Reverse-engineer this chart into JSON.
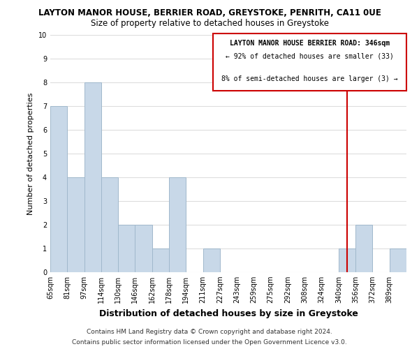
{
  "title": "LAYTON MANOR HOUSE, BERRIER ROAD, GREYSTOKE, PENRITH, CA11 0UE",
  "subtitle": "Size of property relative to detached houses in Greystoke",
  "xlabel": "Distribution of detached houses by size in Greystoke",
  "ylabel": "Number of detached properties",
  "bin_labels": [
    "65sqm",
    "81sqm",
    "97sqm",
    "114sqm",
    "130sqm",
    "146sqm",
    "162sqm",
    "178sqm",
    "194sqm",
    "211sqm",
    "227sqm",
    "243sqm",
    "259sqm",
    "275sqm",
    "292sqm",
    "308sqm",
    "324sqm",
    "340sqm",
    "356sqm",
    "372sqm",
    "389sqm"
  ],
  "bar_heights": [
    7,
    4,
    8,
    4,
    2,
    2,
    1,
    4,
    0,
    1,
    0,
    0,
    0,
    0,
    0,
    0,
    0,
    1,
    2,
    0,
    1
  ],
  "bar_color": "#c8d8e8",
  "bar_edge_color": "#a0b8cc",
  "vline_x": 17.5,
  "vline_color": "#cc0000",
  "ylim": [
    0,
    10
  ],
  "yticks": [
    0,
    1,
    2,
    3,
    4,
    5,
    6,
    7,
    8,
    9,
    10
  ],
  "annotation_title": "LAYTON MANOR HOUSE BERRIER ROAD: 346sqm",
  "annotation_line2": "← 92% of detached houses are smaller (33)",
  "annotation_line3": "8% of semi-detached houses are larger (3) →",
  "footer_line1": "Contains HM Land Registry data © Crown copyright and database right 2024.",
  "footer_line2": "Contains public sector information licensed under the Open Government Licence v3.0.",
  "grid_color": "#dddddd",
  "background_color": "#ffffff"
}
